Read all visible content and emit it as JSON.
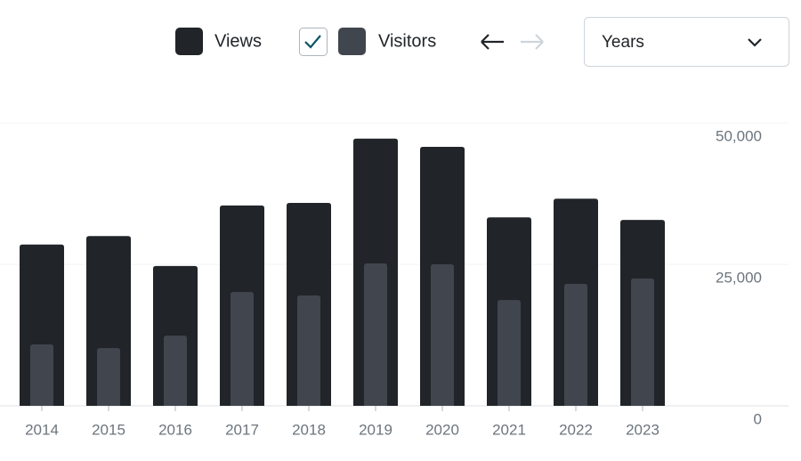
{
  "controls": {
    "period": "Years"
  },
  "chart_data": {
    "type": "bar",
    "categories": [
      "2014",
      "2015",
      "2016",
      "2017",
      "2018",
      "2019",
      "2020",
      "2021",
      "2022",
      "2023"
    ],
    "series": [
      {
        "name": "Views",
        "color": "#212529",
        "values": [
          28500,
          30000,
          24700,
          35400,
          35850,
          47200,
          45750,
          33300,
          36600,
          32850
        ]
      },
      {
        "name": "Visitors",
        "color": "#41464e",
        "values": [
          10850,
          10200,
          12400,
          20100,
          19500,
          25150,
          25000,
          18700,
          21550,
          22500
        ]
      }
    ],
    "ylim": [
      0,
      50000
    ],
    "yticks": [
      0,
      {
        "value": 25000,
        "label": "25,000"
      },
      {
        "value": 50000,
        "label": "50,000"
      }
    ],
    "grid": true
  }
}
